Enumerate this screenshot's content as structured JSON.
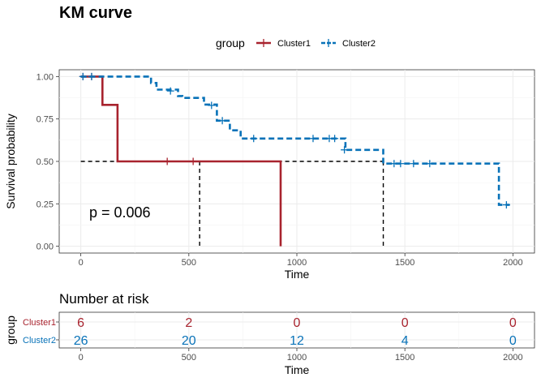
{
  "chart_data": [
    {
      "type": "line",
      "title": "KM curve",
      "xlabel": "Time",
      "ylabel": "Survival probability",
      "xlim": [
        -100,
        2100
      ],
      "ylim": [
        -0.04,
        1.04
      ],
      "x_ticks": [
        0,
        500,
        1000,
        1500,
        2000
      ],
      "y_ticks": [
        0.0,
        0.25,
        0.5,
        0.75,
        1.0
      ],
      "y_tick_labels": [
        "0.00",
        "0.25",
        "0.50",
        "0.75",
        "1.00"
      ],
      "grid": true,
      "legend": {
        "title": "group",
        "position": "top"
      },
      "annotation": "p = 0.006",
      "series": [
        {
          "name": "Cluster1",
          "color": "#A8232E",
          "line": "solid",
          "steps": [
            [
              0,
              1.0
            ],
            [
              100,
              1.0
            ],
            [
              100,
              0.833
            ],
            [
              170,
              0.833
            ],
            [
              170,
              0.5
            ],
            [
              925,
              0.5
            ],
            [
              925,
              0.0
            ]
          ],
          "censored": [
            [
              10,
              1.0
            ],
            [
              50,
              1.0
            ],
            [
              400,
              0.5
            ],
            [
              520,
              0.5
            ]
          ]
        },
        {
          "name": "Cluster2",
          "color": "#0872B8",
          "line": "dashed",
          "steps": [
            [
              0,
              1.0
            ],
            [
              325,
              1.0
            ],
            [
              325,
              0.962
            ],
            [
              350,
              0.962
            ],
            [
              350,
              0.923
            ],
            [
              450,
              0.923
            ],
            [
              450,
              0.885
            ],
            [
              470,
              0.885
            ],
            [
              470,
              0.874
            ],
            [
              570,
              0.874
            ],
            [
              570,
              0.835
            ],
            [
              630,
              0.835
            ],
            [
              630,
              0.74
            ],
            [
              690,
              0.74
            ],
            [
              690,
              0.683
            ],
            [
              740,
              0.683
            ],
            [
              740,
              0.635
            ],
            [
              1225,
              0.635
            ],
            [
              1225,
              0.568
            ],
            [
              1400,
              0.568
            ],
            [
              1400,
              0.487
            ],
            [
              1935,
              0.487
            ],
            [
              1935,
              0.244
            ],
            [
              1985,
              0.244
            ]
          ],
          "censored": [
            [
              10,
              1.0
            ],
            [
              50,
              1.0
            ],
            [
              415,
              0.915
            ],
            [
              605,
              0.83
            ],
            [
              655,
              0.74
            ],
            [
              800,
              0.635
            ],
            [
              1075,
              0.635
            ],
            [
              1150,
              0.635
            ],
            [
              1175,
              0.635
            ],
            [
              1220,
              0.568
            ],
            [
              1450,
              0.487
            ],
            [
              1480,
              0.487
            ],
            [
              1540,
              0.487
            ],
            [
              1615,
              0.487
            ],
            [
              1970,
              0.244
            ]
          ]
        }
      ],
      "median_lines": [
        {
          "y": 0.5,
          "x_end": 1400
        },
        {
          "x": 550,
          "y": 0.5
        },
        {
          "x": 1400,
          "y": 0.5
        }
      ]
    },
    {
      "type": "table",
      "title": "Number at risk",
      "xlabel": "Time",
      "ylabel": "group",
      "xlim": [
        -100,
        2100
      ],
      "x_ticks": [
        0,
        500,
        1000,
        1500,
        2000
      ],
      "rows": [
        {
          "name": "Cluster1",
          "color": "#A8232E",
          "values": [
            6,
            2,
            0,
            0,
            0
          ]
        },
        {
          "name": "Cluster2",
          "color": "#0872B8",
          "values": [
            26,
            20,
            12,
            4,
            0
          ]
        }
      ]
    }
  ]
}
